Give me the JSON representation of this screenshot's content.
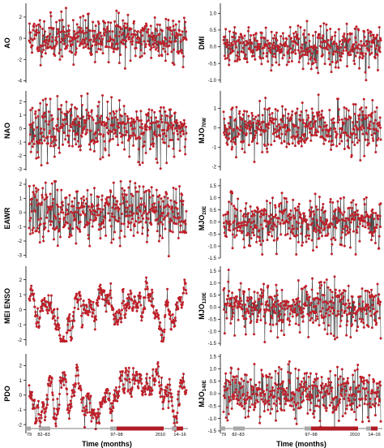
{
  "figure": {
    "time_axis_label": "Time (months)",
    "time_markers": [
      "79",
      "82–83",
      "97–98",
      "2010",
      "14–16"
    ],
    "highlight_color": "#b01c24",
    "gray_color": "#a8a8a8",
    "series_line_color": "#222222",
    "series_point_color": "#c0202a"
  },
  "chart_data": [
    {
      "type": "line",
      "ylabel": "AO",
      "column": "left",
      "ylim": [
        -4.2,
        3.3
      ],
      "yticks": [
        -4,
        -2,
        0,
        2
      ],
      "n": 440,
      "seed": 11,
      "values_summary": {
        "mean": 0.0,
        "sd": 1.0,
        "min": -3.7,
        "max": 3.0
      }
    },
    {
      "type": "line",
      "ylabel": "NAO",
      "column": "left",
      "ylim": [
        -3.1,
        2.8
      ],
      "yticks": [
        -3,
        -2,
        -1,
        0,
        1,
        2
      ],
      "n": 440,
      "seed": 23,
      "values_summary": {
        "mean": 0.0,
        "sd": 1.0,
        "min": -3.0,
        "max": 2.6
      }
    },
    {
      "type": "line",
      "ylabel": "EAWR",
      "column": "left",
      "ylim": [
        -3.2,
        2.4
      ],
      "yticks": [
        -3,
        -2,
        -1,
        0,
        1,
        2
      ],
      "n": 440,
      "seed": 37,
      "values_summary": {
        "mean": 0.0,
        "sd": 1.0,
        "min": -3.1,
        "max": 2.2
      }
    },
    {
      "type": "line",
      "ylabel": "MEI ENSO",
      "column": "left",
      "ylim": [
        -2.4,
        2.9
      ],
      "yticks": [
        -2,
        -1,
        0,
        1,
        2
      ],
      "n": 440,
      "seed": 41,
      "values_summary": {
        "mean": 0.0,
        "sd": 0.95,
        "min": -2.1,
        "max": 2.6
      }
    },
    {
      "type": "line",
      "ylabel": "PDO",
      "column": "left",
      "ylim": [
        -2.6,
        2.8
      ],
      "yticks": [
        -2,
        -1,
        0,
        1,
        2
      ],
      "n": 440,
      "seed": 53,
      "values_summary": {
        "mean": 0.0,
        "sd": 1.0,
        "min": -2.5,
        "max": 2.6
      }
    },
    {
      "type": "line",
      "ylabel": "DMI",
      "column": "right",
      "ylim": [
        -1.08,
        1.3
      ],
      "yticks": [
        -1.0,
        -0.5,
        0.0,
        0.5,
        1.0
      ],
      "n": 440,
      "seed": 61,
      "values_summary": {
        "mean": 0.0,
        "sd": 0.3,
        "min": -1.0,
        "max": 1.25
      }
    },
    {
      "type": "line",
      "ylabel": "MJO",
      "ylabel_sub": "70W",
      "column": "right",
      "ylim": [
        -2.2,
        1.9
      ],
      "yticks": [
        -2,
        -1,
        0,
        1
      ],
      "n": 440,
      "seed": 73,
      "values_summary": {
        "mean": 0.0,
        "sd": 0.6,
        "min": -2.0,
        "max": 1.7
      }
    },
    {
      "type": "line",
      "ylabel": "MJO",
      "ylabel_sub": "20E",
      "column": "right",
      "ylim": [
        -1.5,
        1.8
      ],
      "yticks": [
        -1.5,
        -1.0,
        -0.5,
        0.0,
        0.5,
        1.0,
        1.5
      ],
      "n": 440,
      "seed": 83,
      "values_summary": {
        "mean": 0.0,
        "sd": 0.5,
        "min": -1.35,
        "max": 1.6
      }
    },
    {
      "type": "line",
      "ylabel": "MJO",
      "ylabel_sub": "120E",
      "column": "right",
      "ylim": [
        -1.6,
        1.7
      ],
      "yticks": [
        -1.5,
        -1.0,
        -0.5,
        0.0,
        0.5,
        1.0,
        1.5
      ],
      "n": 440,
      "seed": 97,
      "values_summary": {
        "mean": 0.0,
        "sd": 0.5,
        "min": -1.45,
        "max": 1.55
      }
    },
    {
      "type": "line",
      "ylabel": "MJO",
      "ylabel_sub": "140E",
      "column": "right",
      "ylim": [
        -1.6,
        1.6
      ],
      "yticks": [
        -1.5,
        -1.0,
        -0.5,
        0.0,
        0.5,
        1.0,
        1.5
      ],
      "n": 440,
      "seed": 101,
      "values_summary": {
        "mean": 0.0,
        "sd": 0.5,
        "min": -1.5,
        "max": 1.5
      }
    }
  ]
}
